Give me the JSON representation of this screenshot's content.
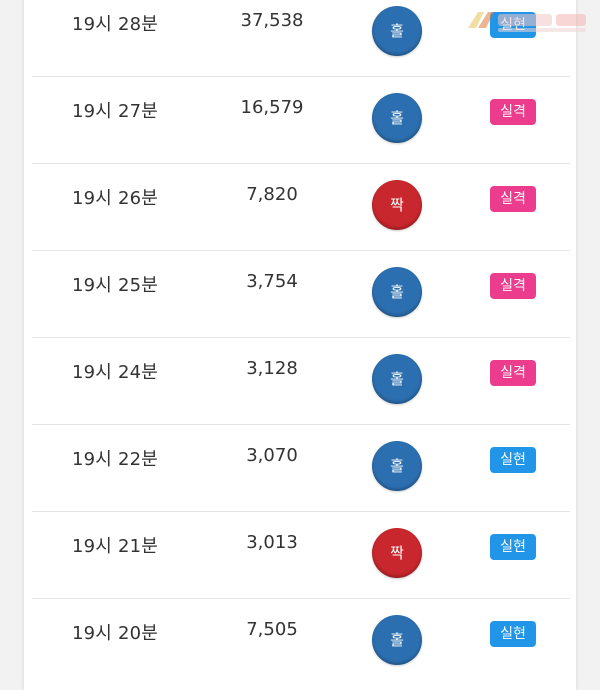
{
  "results": [
    {
      "time": "19시 28분",
      "count": "37,538",
      "ball": "홀",
      "type": "odd",
      "status": "실현",
      "status_type": "success"
    },
    {
      "time": "19시 27분",
      "count": "16,579",
      "ball": "홀",
      "type": "odd",
      "status": "실격",
      "status_type": "fail"
    },
    {
      "time": "19시 26분",
      "count": "7,820",
      "ball": "짝",
      "type": "even",
      "status": "실격",
      "status_type": "fail"
    },
    {
      "time": "19시 25분",
      "count": "3,754",
      "ball": "홀",
      "type": "odd",
      "status": "실격",
      "status_type": "fail"
    },
    {
      "time": "19시 24분",
      "count": "3,128",
      "ball": "홀",
      "type": "odd",
      "status": "실격",
      "status_type": "fail"
    },
    {
      "time": "19시 22분",
      "count": "3,070",
      "ball": "홀",
      "type": "odd",
      "status": "실현",
      "status_type": "success"
    },
    {
      "time": "19시 21분",
      "count": "3,013",
      "ball": "짝",
      "type": "even",
      "status": "실현",
      "status_type": "success"
    },
    {
      "time": "19시 20분",
      "count": "7,505",
      "ball": "홀",
      "type": "odd",
      "status": "실현",
      "status_type": "success"
    }
  ],
  "colors": {
    "odd_ball": "#2c6fb0",
    "even_ball": "#c8272d",
    "fail_badge": "#ec3c8d",
    "success_badge": "#2196e8"
  },
  "watermark": {
    "logo": "먹튀검증 logo watermark"
  }
}
